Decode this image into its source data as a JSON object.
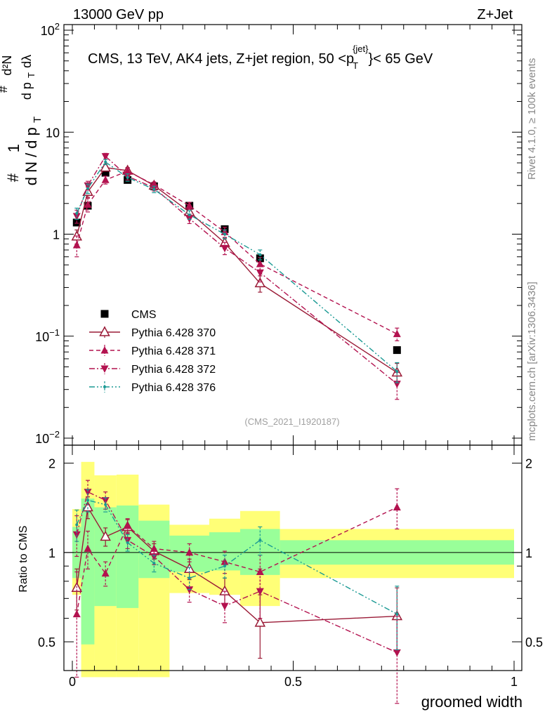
{
  "header": {
    "left": "13000 GeV pp",
    "right": "Z+Jet"
  },
  "side_labels": {
    "rivet": "Rivet 4.1.0, ≥ 100k events",
    "mcplots": "mcplots.cern.ch [arXiv:1306.3436]"
  },
  "watermark": "(CMS_2021_I1920187)",
  "colors": {
    "cms": "#000000",
    "p370": "#9a1a36",
    "p371": "#b3124f",
    "p372": "#b3124f",
    "p376": "#1a9a94",
    "band_outer": "#ffff77",
    "band_inner": "#99ff99"
  },
  "chart_data": [
    {
      "type": "scatter",
      "panel": "main",
      "title": "CMS, 13 TeV, AK4 jets, Z+jet region, 50 <p_T^{jet}< 65 GeV",
      "title_parts": {
        "prefix": "CMS, 13 TeV, AK4 jets, Z+jet region, 50 <",
        "p": "p",
        "sub": "T",
        "sup": "{jet}",
        "suffix": "}< 65 GeV"
      },
      "ylabel_parts": {
        "hash": "#",
        "one": "1",
        "den": "d N / d p",
        "den_sub": "T",
        "num2": "d²N",
        "den2": "d p",
        "den2_sub": "T",
        "den2_tail": " dλ"
      },
      "xlim": [
        0,
        1
      ],
      "ylim": [
        0.01,
        100
      ],
      "yscale": "log",
      "yticks": [
        {
          "v": 0.01,
          "base": "10",
          "exp": "−2"
        },
        {
          "v": 0.1,
          "base": "10",
          "exp": "−1"
        },
        {
          "v": 1,
          "base": "1",
          "exp": ""
        },
        {
          "v": 10,
          "base": "10",
          "exp": ""
        },
        {
          "v": 100,
          "base": "10",
          "exp": "2"
        }
      ],
      "x": [
        0.01,
        0.035,
        0.075,
        0.125,
        0.185,
        0.265,
        0.345,
        0.425,
        0.735
      ],
      "series": [
        {
          "name": "CMS",
          "key": "cms",
          "style": "square",
          "values": [
            1.3,
            1.9,
            4.0,
            3.4,
            2.95,
            1.9,
            1.12,
            0.58,
            0.073
          ]
        },
        {
          "name": "Pythia 6.428 370",
          "key": "p370",
          "style": "open-triangle-up",
          "line": "solid",
          "values": [
            0.95,
            2.6,
            4.5,
            4.2,
            3.0,
            1.65,
            0.82,
            0.33,
            0.044
          ],
          "err": [
            0.15,
            0.3,
            0.3,
            0.3,
            0.2,
            0.15,
            0.1,
            0.06,
            0.01
          ]
        },
        {
          "name": "Pythia 6.428 371",
          "key": "p371",
          "style": "triangle-up",
          "line": "dashed",
          "values": [
            0.78,
            1.95,
            3.4,
            4.15,
            3.05,
            1.9,
            1.05,
            0.51,
            0.105
          ],
          "err": [
            0.18,
            0.3,
            0.3,
            0.3,
            0.2,
            0.15,
            0.12,
            0.08,
            0.015
          ]
        },
        {
          "name": "Pythia 6.428 372",
          "key": "p372",
          "style": "triangle-down",
          "line": "dashdot",
          "values": [
            1.5,
            3.0,
            5.8,
            3.7,
            2.85,
            1.42,
            0.73,
            0.42,
            0.034
          ],
          "err": [
            0.22,
            0.3,
            0.4,
            0.3,
            0.2,
            0.15,
            0.1,
            0.08,
            0.01
          ]
        },
        {
          "name": "Pythia 6.428 376",
          "key": "p376",
          "style": "dot",
          "line": "dashdotdot",
          "values": [
            1.6,
            2.8,
            5.1,
            3.6,
            2.75,
            1.55,
            1.0,
            0.63,
            0.045
          ],
          "err": [
            0.2,
            0.3,
            0.3,
            0.3,
            0.2,
            0.15,
            0.1,
            0.07,
            0.01
          ]
        }
      ]
    },
    {
      "type": "line",
      "panel": "ratio",
      "ylabel": "Ratio to CMS",
      "xlabel": "groomed width",
      "xlim": [
        0,
        1
      ],
      "ylim": [
        0.4,
        2.3
      ],
      "yscale": "log",
      "yticks": [
        0.5,
        1,
        2
      ],
      "xticks": [
        0,
        0.5,
        1
      ],
      "bins": [
        {
          "lo": 0.0,
          "hi": 0.02,
          "inner": [
            0.82,
            1.22
          ],
          "outer": [
            0.72,
            1.4
          ]
        },
        {
          "lo": 0.02,
          "hi": 0.05,
          "inner": [
            0.49,
            1.52
          ],
          "outer": [
            0.38,
            2.02
          ]
        },
        {
          "lo": 0.05,
          "hi": 0.1,
          "inner": [
            0.66,
            1.42
          ],
          "outer": [
            0.38,
            1.82
          ]
        },
        {
          "lo": 0.1,
          "hi": 0.15,
          "inner": [
            0.65,
            1.44
          ],
          "outer": [
            0.38,
            1.83
          ]
        },
        {
          "lo": 0.15,
          "hi": 0.22,
          "inner": [
            0.82,
            1.28
          ],
          "outer": [
            0.38,
            1.45
          ]
        },
        {
          "lo": 0.22,
          "hi": 0.31,
          "inner": [
            0.86,
            1.14
          ],
          "outer": [
            0.73,
            1.24
          ]
        },
        {
          "lo": 0.31,
          "hi": 0.38,
          "inner": [
            0.87,
            1.17
          ],
          "outer": [
            0.72,
            1.3
          ]
        },
        {
          "lo": 0.38,
          "hi": 0.47,
          "inner": [
            0.84,
            1.2
          ],
          "outer": [
            0.66,
            1.38
          ]
        },
        {
          "lo": 0.47,
          "hi": 1.0,
          "inner": [
            0.91,
            1.1
          ],
          "outer": [
            0.82,
            1.2
          ]
        }
      ],
      "x": [
        0.01,
        0.035,
        0.075,
        0.125,
        0.185,
        0.265,
        0.345,
        0.425,
        0.735
      ],
      "series": [
        {
          "name": "Pythia 6.428 370",
          "key": "p370",
          "style": "open-triangle-up",
          "line": "solid",
          "values": [
            0.76,
            1.42,
            1.13,
            1.22,
            1.01,
            0.88,
            0.74,
            0.58,
            0.61
          ],
          "err": [
            0.12,
            0.12,
            0.08,
            0.07,
            0.06,
            0.07,
            0.08,
            0.14,
            0.15
          ]
        },
        {
          "name": "Pythia 6.428 371",
          "key": "p371",
          "style": "triangle-up",
          "line": "dashed",
          "values": [
            0.62,
            1.03,
            0.85,
            1.23,
            1.03,
            1.0,
            0.93,
            0.86,
            1.42
          ],
          "err": [
            0.24,
            0.15,
            0.08,
            0.07,
            0.06,
            0.07,
            0.08,
            0.12,
            0.22
          ]
        },
        {
          "name": "Pythia 6.428 372",
          "key": "p372",
          "style": "triangle-down",
          "line": "dashdot",
          "values": [
            1.15,
            1.6,
            1.5,
            1.1,
            0.97,
            0.75,
            0.66,
            0.74,
            0.46
          ],
          "err": [
            0.18,
            0.15,
            0.1,
            0.07,
            0.06,
            0.07,
            0.08,
            0.14,
            0.15
          ]
        },
        {
          "name": "Pythia 6.428 376",
          "key": "p376",
          "style": "dot",
          "line": "dashdotdot",
          "values": [
            1.24,
            1.5,
            1.45,
            1.08,
            0.92,
            0.82,
            0.9,
            1.1,
            0.62
          ],
          "err": [
            0.15,
            0.13,
            0.08,
            0.07,
            0.06,
            0.07,
            0.08,
            0.12,
            0.15
          ]
        }
      ]
    }
  ]
}
